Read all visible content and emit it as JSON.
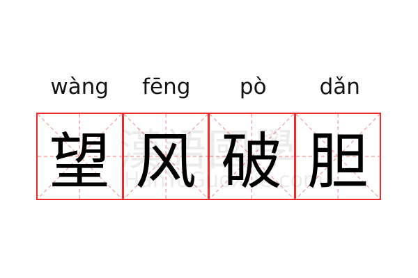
{
  "colors": {
    "grid_border": "#ee2a2a",
    "grid_guides": "#f4a6a6",
    "text": "#000000"
  },
  "watermark": {
    "chinese": "漢語國學",
    "latin": "HanYuGuoXue.com"
  },
  "syllables": [
    {
      "pinyin": "wàng",
      "hanzi": "望"
    },
    {
      "pinyin": "fēng",
      "hanzi": "风"
    },
    {
      "pinyin": "pò",
      "hanzi": "破"
    },
    {
      "pinyin": "dǎn",
      "hanzi": "胆"
    }
  ]
}
